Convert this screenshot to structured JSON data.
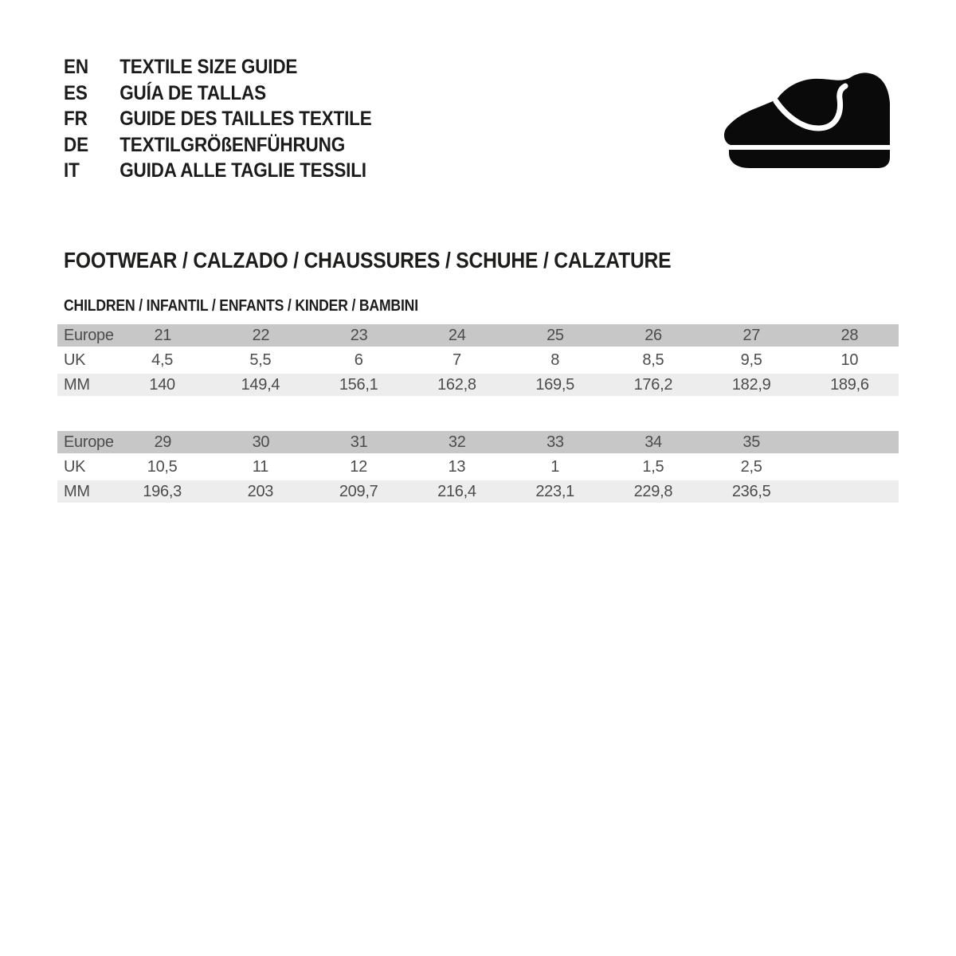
{
  "languages": [
    {
      "code": "EN",
      "label": "TEXTILE SIZE GUIDE"
    },
    {
      "code": "ES",
      "label": "GUÍA DE TALLAS"
    },
    {
      "code": "FR",
      "label": "GUIDE DES TAILLES TEXTILE"
    },
    {
      "code": "DE",
      "label": "TEXTILGRÖßENFÜHRUNG"
    },
    {
      "code": "IT",
      "label": "GUIDA ALLE TAGLIE TESSILI"
    }
  ],
  "icon": "children-shoe-icon",
  "section_title": "FOOTWEAR / CALZADO / CHAUSSURES / SCHUHE / CALZATURE",
  "subsection_title": "CHILDREN / INFANTIL / ENFANTS / KINDER / BAMBINI",
  "colors": {
    "header_row_bg": "#c7c7c7",
    "mm_row_bg": "#ededed",
    "table_text": "#4c4c4e",
    "heading_text": "#1d1d1b",
    "icon_fill": "#0a0a0a"
  },
  "tables": [
    {
      "rows": [
        {
          "label": "Europe",
          "values": [
            "21",
            "22",
            "23",
            "24",
            "25",
            "26",
            "27",
            "28"
          ]
        },
        {
          "label": "UK",
          "values": [
            "4,5",
            "5,5",
            "6",
            "7",
            "8",
            "8,5",
            "9,5",
            "10"
          ]
        },
        {
          "label": "MM",
          "values": [
            "140",
            "149,4",
            "156,1",
            "162,8",
            "169,5",
            "176,2",
            "182,9",
            "189,6"
          ]
        }
      ]
    },
    {
      "rows": [
        {
          "label": "Europe",
          "values": [
            "29",
            "30",
            "31",
            "32",
            "33",
            "34",
            "35",
            ""
          ]
        },
        {
          "label": "UK",
          "values": [
            "10,5",
            "11",
            "12",
            "13",
            "1",
            "1,5",
            "2,5",
            ""
          ]
        },
        {
          "label": "MM",
          "values": [
            "196,3",
            "203",
            "209,7",
            "216,4",
            "223,1",
            "229,8",
            "236,5",
            ""
          ]
        }
      ]
    }
  ]
}
